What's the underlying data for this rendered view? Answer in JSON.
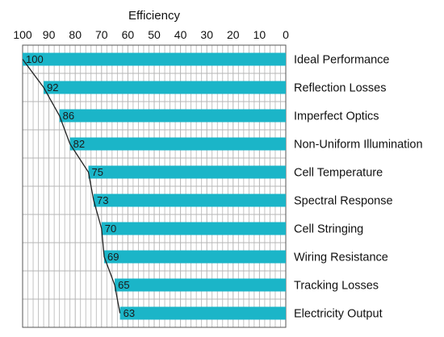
{
  "chart_data": {
    "type": "bar",
    "orientation": "horizontal",
    "x_axis_direction": "reversed",
    "x_axis_position": "top",
    "xlabel": "Efficiency",
    "xlim": [
      0,
      100
    ],
    "xticks": [
      100,
      90,
      80,
      70,
      60,
      50,
      40,
      30,
      20,
      10,
      0
    ],
    "minor_grid_step": 2,
    "grid": true,
    "categories": [
      "Ideal Performance",
      "Reflection Losses",
      "Imperfect Optics",
      "Non-Uniform Illumination",
      "Cell Temperature",
      "Spectral Response",
      "Cell Stringing",
      "Wiring Resistance",
      "Tracking Losses",
      "Electricity Output"
    ],
    "values": [
      100,
      92,
      86,
      82,
      75,
      73,
      70,
      69,
      65,
      63
    ],
    "value_labels": [
      "100",
      "92",
      "86",
      "82",
      "75",
      "73",
      "70",
      "69",
      "65",
      "63"
    ],
    "trend_line": true,
    "colors": {
      "bar": "#1bb5c8",
      "grid": "#b5b5b5",
      "frame": "#555555",
      "trend_line": "#222222"
    }
  }
}
